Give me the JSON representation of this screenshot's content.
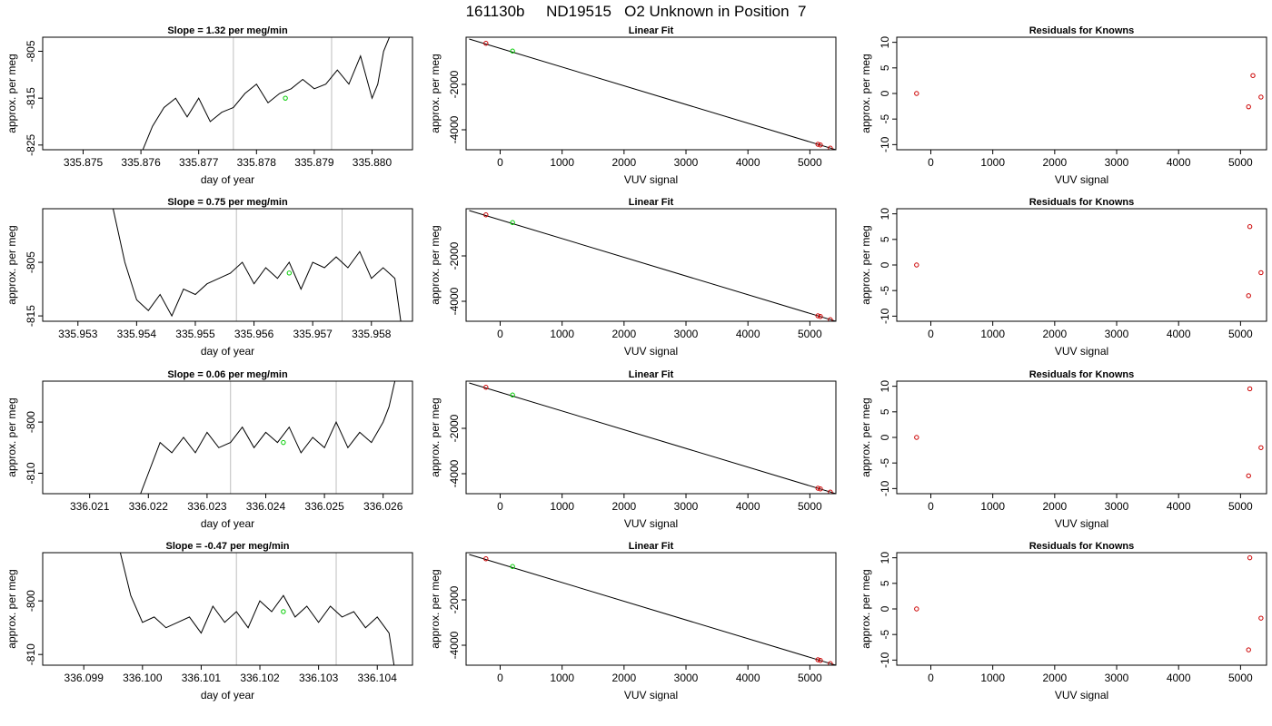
{
  "page_title": "161130b     ND19515   O2 Unknown in Position  7",
  "chart_data": [
    {
      "type": "line",
      "panel": "timeseries",
      "title": "Slope =  1.32  per meg/min",
      "xlabel": "day of year",
      "ylabel": "approx. per meg",
      "xlim": [
        335.8743,
        335.8807
      ],
      "ylim": [
        -826,
        -802
      ],
      "xticks": [
        335.875,
        335.876,
        335.877,
        335.878,
        335.879,
        335.88
      ],
      "xtick_labels": [
        "335.875",
        "335.876",
        "335.877",
        "335.878",
        "335.879",
        "335.880"
      ],
      "yticks": [
        -825,
        -815,
        -805
      ],
      "ytick_labels": [
        "-825",
        "-815",
        "-805"
      ],
      "vlines": [
        335.8776,
        335.8793
      ],
      "series": [
        {
          "values": {
            "x": [
              335.876,
              335.8762,
              335.8764,
              335.8766,
              335.8768,
              335.877,
              335.8772,
              335.8774,
              335.8776,
              335.8778,
              335.878,
              335.8782,
              335.8784,
              335.8786,
              335.8788,
              335.879,
              335.8792,
              335.8794,
              335.8796,
              335.8798,
              335.88,
              335.8801,
              335.8802,
              335.8803
            ],
            "y": [
              -827,
              -821,
              -817,
              -815,
              -819,
              -815,
              -820,
              -818,
              -817,
              -814,
              -812,
              -816,
              -814,
              -813,
              -811,
              -813,
              -812,
              -809,
              -812,
              -806,
              -815,
              -812,
              -805,
              -802
            ]
          }
        }
      ],
      "marker": {
        "x": [
          335.8785
        ],
        "y": [
          -815
        ]
      }
    },
    {
      "type": "scatter",
      "panel": "linear_fit",
      "title": "Linear Fit",
      "xlabel": "VUV signal",
      "ylabel": "approx. per meg",
      "xlim": [
        -550,
        5420
      ],
      "ylim": [
        -4880,
        80
      ],
      "xticks": [
        0,
        1000,
        2000,
        3000,
        4000,
        5000
      ],
      "xtick_labels": [
        "0",
        "1000",
        "2000",
        "3000",
        "4000",
        "5000"
      ],
      "yticks": [
        -2000,
        -4000
      ],
      "ytick_labels": [
        "-2000",
        "-4000"
      ],
      "fit_line": {
        "x": [
          -500,
          5420
        ],
        "y": [
          0,
          -4880
        ]
      },
      "knowns": {
        "x": [
          -230,
          5130,
          5170,
          5330
        ],
        "y": [
          -190,
          -4640,
          -4670,
          -4810
        ]
      },
      "unknown": {
        "x": [
          200
        ],
        "y": [
          -530
        ]
      }
    },
    {
      "type": "scatter",
      "panel": "residuals",
      "title": "Residuals for Knowns",
      "xlabel": "VUV signal",
      "ylabel": "approx. per meg",
      "xlim": [
        -550,
        5420
      ],
      "ylim": [
        -11,
        11
      ],
      "xticks": [
        0,
        1000,
        2000,
        3000,
        4000,
        5000
      ],
      "xtick_labels": [
        "0",
        "1000",
        "2000",
        "3000",
        "4000",
        "5000"
      ],
      "yticks": [
        10,
        5,
        0,
        -5,
        -10
      ],
      "ytick_labels": [
        "10",
        "5",
        "0",
        "-5",
        "-10"
      ],
      "points": {
        "x": [
          -230,
          5130,
          5200,
          5330
        ],
        "y": [
          0,
          -2.6,
          3.5,
          -0.7
        ]
      }
    },
    {
      "type": "line",
      "panel": "timeseries",
      "title": "Slope =  0.75  per meg/min",
      "xlabel": "day of year",
      "ylabel": "approx. per meg",
      "xlim": [
        335.9524,
        335.9587
      ],
      "ylim": [
        -816,
        -795
      ],
      "xticks": [
        335.953,
        335.954,
        335.955,
        335.956,
        335.957,
        335.958
      ],
      "xtick_labels": [
        "335.953",
        "335.954",
        "335.955",
        "335.956",
        "335.957",
        "335.958"
      ],
      "yticks": [
        -815,
        -805
      ],
      "ytick_labels": [
        "-815",
        "-805"
      ],
      "vlines": [
        335.9557,
        335.9575
      ],
      "series": [
        {
          "values": {
            "x": [
              335.9536,
              335.9538,
              335.954,
              335.9542,
              335.9544,
              335.9546,
              335.9548,
              335.955,
              335.9552,
              335.9554,
              335.9556,
              335.9558,
              335.956,
              335.9562,
              335.9564,
              335.9566,
              335.9568,
              335.957,
              335.9572,
              335.9574,
              335.9576,
              335.9578,
              335.958,
              335.9582,
              335.9584,
              335.9585
            ],
            "y": [
              -795,
              -805,
              -812,
              -814,
              -811,
              -815,
              -810,
              -811,
              -809,
              -808,
              -807,
              -805,
              -809,
              -806,
              -808,
              -805,
              -810,
              -805,
              -806,
              -804,
              -806,
              -803,
              -808,
              -806,
              -808,
              -816
            ]
          }
        }
      ],
      "marker": {
        "x": [
          335.9566
        ],
        "y": [
          -807
        ]
      }
    },
    {
      "type": "scatter",
      "panel": "linear_fit",
      "title": "Linear Fit",
      "xlabel": "VUV signal",
      "ylabel": "approx. per meg",
      "xlim": [
        -550,
        5420
      ],
      "ylim": [
        -4880,
        80
      ],
      "xticks": [
        0,
        1000,
        2000,
        3000,
        4000,
        5000
      ],
      "xtick_labels": [
        "0",
        "1000",
        "2000",
        "3000",
        "4000",
        "5000"
      ],
      "yticks": [
        -2000,
        -4000
      ],
      "ytick_labels": [
        "-2000",
        "-4000"
      ],
      "fit_line": {
        "x": [
          -500,
          5420
        ],
        "y": [
          0,
          -4880
        ]
      },
      "knowns": {
        "x": [
          -230,
          5130,
          5170,
          5330
        ],
        "y": [
          -190,
          -4640,
          -4670,
          -4810
        ]
      },
      "unknown": {
        "x": [
          200
        ],
        "y": [
          -530
        ]
      }
    },
    {
      "type": "scatter",
      "panel": "residuals",
      "title": "Residuals for Knowns",
      "xlabel": "VUV signal",
      "ylabel": "approx. per meg",
      "xlim": [
        -550,
        5420
      ],
      "ylim": [
        -11,
        11
      ],
      "xticks": [
        0,
        1000,
        2000,
        3000,
        4000,
        5000
      ],
      "xtick_labels": [
        "0",
        "1000",
        "2000",
        "3000",
        "4000",
        "5000"
      ],
      "yticks": [
        10,
        5,
        0,
        -5,
        -10
      ],
      "ytick_labels": [
        "10",
        "5",
        "0",
        "-5",
        "-10"
      ],
      "points": {
        "x": [
          -230,
          5130,
          5150,
          5330
        ],
        "y": [
          0,
          -6,
          7.5,
          -1.5
        ]
      }
    },
    {
      "type": "line",
      "panel": "timeseries",
      "title": "Slope =  0.06  per meg/min",
      "xlabel": "day of year",
      "ylabel": "approx. per meg",
      "xlim": [
        336.0202,
        336.0265
      ],
      "ylim": [
        -814,
        -792
      ],
      "xticks": [
        336.021,
        336.022,
        336.023,
        336.024,
        336.025,
        336.026
      ],
      "xtick_labels": [
        "336.021",
        "336.022",
        "336.023",
        "336.024",
        "336.025",
        "336.026"
      ],
      "yticks": [
        -810,
        -800
      ],
      "ytick_labels": [
        "-810",
        "-800"
      ],
      "vlines": [
        336.0234,
        336.0252
      ],
      "series": [
        {
          "values": {
            "x": [
              336.0218,
              336.022,
              336.0222,
              336.0224,
              336.0226,
              336.0228,
              336.023,
              336.0232,
              336.0234,
              336.0236,
              336.0238,
              336.024,
              336.0242,
              336.0244,
              336.0246,
              336.0248,
              336.025,
              336.0252,
              336.0254,
              336.0256,
              336.0258,
              336.026,
              336.0261,
              336.0262
            ],
            "y": [
              -816,
              -810,
              -804,
              -806,
              -803,
              -806,
              -802,
              -805,
              -804,
              -801,
              -805,
              -802,
              -804,
              -801,
              -806,
              -803,
              -805,
              -800,
              -805,
              -802,
              -804,
              -800,
              -797,
              -792
            ]
          }
        }
      ],
      "marker": {
        "x": [
          336.0243
        ],
        "y": [
          -804
        ]
      }
    },
    {
      "type": "scatter",
      "panel": "linear_fit",
      "title": "Linear Fit",
      "xlabel": "VUV signal",
      "ylabel": "approx. per meg",
      "xlim": [
        -550,
        5420
      ],
      "ylim": [
        -4880,
        80
      ],
      "xticks": [
        0,
        1000,
        2000,
        3000,
        4000,
        5000
      ],
      "xtick_labels": [
        "0",
        "1000",
        "2000",
        "3000",
        "4000",
        "5000"
      ],
      "yticks": [
        -2000,
        -4000
      ],
      "ytick_labels": [
        "-2000",
        "-4000"
      ],
      "fit_line": {
        "x": [
          -500,
          5420
        ],
        "y": [
          0,
          -4880
        ]
      },
      "knowns": {
        "x": [
          -230,
          5130,
          5170,
          5330
        ],
        "y": [
          -190,
          -4640,
          -4670,
          -4810
        ]
      },
      "unknown": {
        "x": [
          200
        ],
        "y": [
          -530
        ]
      }
    },
    {
      "type": "scatter",
      "panel": "residuals",
      "title": "Residuals for Knowns",
      "xlabel": "VUV signal",
      "ylabel": "approx. per meg",
      "xlim": [
        -550,
        5420
      ],
      "ylim": [
        -11,
        11
      ],
      "xticks": [
        0,
        1000,
        2000,
        3000,
        4000,
        5000
      ],
      "xtick_labels": [
        "0",
        "1000",
        "2000",
        "3000",
        "4000",
        "5000"
      ],
      "yticks": [
        10,
        5,
        0,
        -5,
        -10
      ],
      "ytick_labels": [
        "10",
        "5",
        "0",
        "-5",
        "-10"
      ],
      "points": {
        "x": [
          -230,
          5130,
          5150,
          5330
        ],
        "y": [
          0,
          -7.5,
          9.5,
          -2
        ]
      }
    },
    {
      "type": "line",
      "panel": "timeseries",
      "title": "Slope =  -0.47  per meg/min",
      "xlabel": "day of year",
      "ylabel": "approx. per meg",
      "xlim": [
        336.0983,
        336.1046
      ],
      "ylim": [
        -812,
        -791
      ],
      "xticks": [
        336.099,
        336.1,
        336.101,
        336.102,
        336.103,
        336.104
      ],
      "xtick_labels": [
        "336.099",
        "336.100",
        "336.101",
        "336.102",
        "336.103",
        "336.104"
      ],
      "yticks": [
        -810,
        -800
      ],
      "ytick_labels": [
        "-810",
        "-800"
      ],
      "vlines": [
        336.1016,
        336.1033
      ],
      "series": [
        {
          "values": {
            "x": [
              336.0996,
              336.0998,
              336.1,
              336.1002,
              336.1004,
              336.1006,
              336.1008,
              336.101,
              336.1012,
              336.1014,
              336.1016,
              336.1018,
              336.102,
              336.1022,
              336.1024,
              336.1026,
              336.1028,
              336.103,
              336.1032,
              336.1034,
              336.1036,
              336.1038,
              336.104,
              336.1042,
              336.1043
            ],
            "y": [
              -790,
              -799,
              -804,
              -803,
              -805,
              -804,
              -803,
              -806,
              -801,
              -804,
              -802,
              -805,
              -800,
              -802,
              -799,
              -803,
              -801,
              -804,
              -801,
              -803,
              -802,
              -805,
              -803,
              -806,
              -813
            ]
          }
        }
      ],
      "marker": {
        "x": [
          336.1024
        ],
        "y": [
          -802
        ]
      }
    },
    {
      "type": "scatter",
      "panel": "linear_fit",
      "title": "Linear Fit",
      "xlabel": "VUV signal",
      "ylabel": "approx. per meg",
      "xlim": [
        -550,
        5420
      ],
      "ylim": [
        -4880,
        80
      ],
      "xticks": [
        0,
        1000,
        2000,
        3000,
        4000,
        5000
      ],
      "xtick_labels": [
        "0",
        "1000",
        "2000",
        "3000",
        "4000",
        "5000"
      ],
      "yticks": [
        -2000,
        -4000
      ],
      "ytick_labels": [
        "-2000",
        "-4000"
      ],
      "fit_line": {
        "x": [
          -500,
          5420
        ],
        "y": [
          0,
          -4880
        ]
      },
      "knowns": {
        "x": [
          -230,
          5130,
          5170,
          5330
        ],
        "y": [
          -190,
          -4640,
          -4670,
          -4810
        ]
      },
      "unknown": {
        "x": [
          200
        ],
        "y": [
          -530
        ]
      }
    },
    {
      "type": "scatter",
      "panel": "residuals",
      "title": "Residuals for Knowns",
      "xlabel": "VUV signal",
      "ylabel": "approx. per meg",
      "xlim": [
        -550,
        5420
      ],
      "ylim": [
        -11,
        11
      ],
      "xticks": [
        0,
        1000,
        2000,
        3000,
        4000,
        5000
      ],
      "xtick_labels": [
        "0",
        "1000",
        "2000",
        "3000",
        "4000",
        "5000"
      ],
      "yticks": [
        10,
        5,
        0,
        -5,
        -10
      ],
      "ytick_labels": [
        "10",
        "5",
        "0",
        "-5",
        "-10"
      ],
      "points": {
        "x": [
          -230,
          5130,
          5150,
          5330
        ],
        "y": [
          0,
          -8,
          10,
          -1.8
        ]
      }
    }
  ],
  "colors": {
    "line": "#000000",
    "vline": "#bebebe",
    "known_point": "#cc0000",
    "unknown_point": "#00cc00"
  }
}
